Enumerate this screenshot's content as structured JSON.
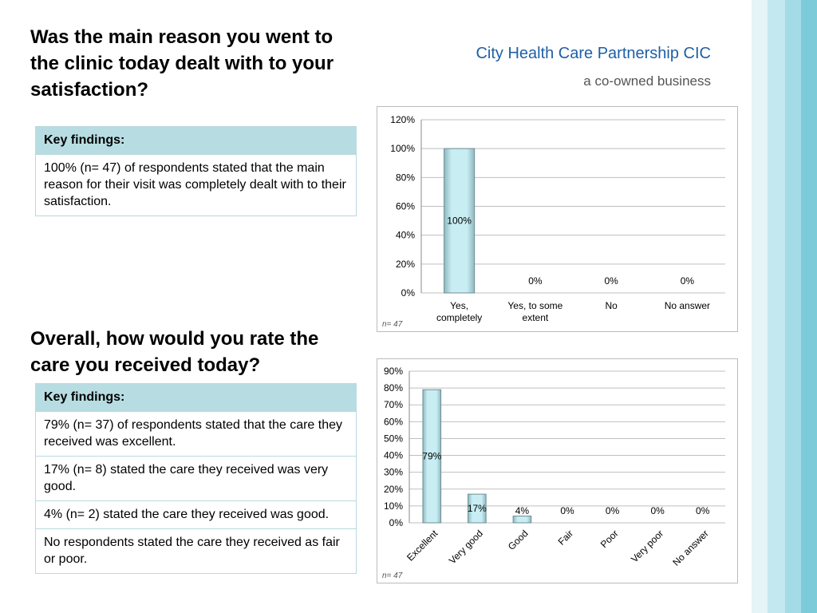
{
  "brand": {
    "name": "City Health Care Partnership CIC",
    "tagline": "a co-owned business"
  },
  "sections": [
    {
      "question": "Was the main reason you went to the clinic today dealt with to your satisfaction?",
      "header": "Key findings:",
      "rows": [
        "100% (n= 47) of respondents stated that the main reason for their visit was completely dealt with to their satisfaction."
      ]
    },
    {
      "question": "Overall, how would you rate the care you received today?",
      "header": "Key findings:",
      "rows": [
        "79% (n= 37) of respondents stated that the care they received was excellent.",
        "17% (n= 8) stated the care they received was very good.",
        "4% (n= 2) stated the care they received was good.",
        "No respondents stated the care they received as fair or poor."
      ]
    }
  ],
  "chart_data": [
    {
      "type": "bar",
      "categories": [
        "Yes, completely",
        "Yes, to some extent",
        "No",
        "No answer"
      ],
      "values": [
        100,
        0,
        0,
        0
      ],
      "value_labels": [
        "100%",
        "0%",
        "0%",
        "0%"
      ],
      "color": "#c8eef4",
      "ylim": [
        0,
        120
      ],
      "yticks": [
        {
          "value": 0,
          "label": "0%"
        },
        {
          "value": 20,
          "label": "20%"
        },
        {
          "value": 40,
          "label": "40%"
        },
        {
          "value": 60,
          "label": "60%"
        },
        {
          "value": 80,
          "label": "80%"
        },
        {
          "value": 100,
          "label": "100%"
        },
        {
          "value": 120,
          "label": "120%"
        }
      ],
      "grid": true,
      "rotate_labels": false,
      "note": "n= 47"
    },
    {
      "type": "bar",
      "categories": [
        "Excellent",
        "Very good",
        "Good",
        "Fair",
        "Poor",
        "Very poor",
        "No answer"
      ],
      "values": [
        79,
        17,
        4,
        0,
        0,
        0,
        0
      ],
      "value_labels": [
        "79%",
        "17%",
        "4%",
        "0%",
        "0%",
        "0%",
        "0%"
      ],
      "color": "#c8eef4",
      "ylim": [
        0,
        90
      ],
      "yticks": [
        {
          "value": 0,
          "label": "0%"
        },
        {
          "value": 10,
          "label": "10%"
        },
        {
          "value": 20,
          "label": "20%"
        },
        {
          "value": 30,
          "label": "30%"
        },
        {
          "value": 40,
          "label": "40%"
        },
        {
          "value": 50,
          "label": "50%"
        },
        {
          "value": 60,
          "label": "60%"
        },
        {
          "value": 70,
          "label": "70%"
        },
        {
          "value": 80,
          "label": "80%"
        },
        {
          "value": 90,
          "label": "90%"
        }
      ],
      "grid": true,
      "rotate_labels": true,
      "note": "n= 47"
    }
  ]
}
